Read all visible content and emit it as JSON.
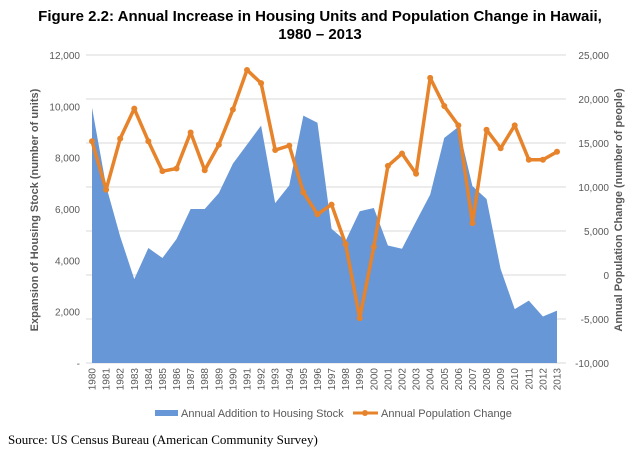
{
  "title_line1": "Figure 2.2: Annual Increase in Housing Units and Population Change in Hawaii,",
  "title_line2": "1980 – 2013",
  "source": "Source: US Census Bureau (American Community Survey)",
  "chart_data": {
    "type": "area+line",
    "categories": [
      "1980",
      "1981",
      "1982",
      "1983",
      "1984",
      "1985",
      "1986",
      "1987",
      "1988",
      "1989",
      "1990",
      "1991",
      "1992",
      "1993",
      "1994",
      "1995",
      "1996",
      "1997",
      "1998",
      "1999",
      "2000",
      "2001",
      "2002",
      "2003",
      "2004",
      "2005",
      "2006",
      "2007",
      "2008",
      "2009",
      "2010",
      "2011",
      "2012",
      "2013"
    ],
    "series": [
      {
        "name": "Annual Addition to Housing Stock",
        "type": "area",
        "axis": "left",
        "color": "#6797d6",
        "values": [
          9950,
          6900,
          4930,
          3270,
          4480,
          4090,
          4830,
          6000,
          6000,
          6620,
          7770,
          8510,
          9250,
          6230,
          6920,
          9640,
          9360,
          5230,
          4760,
          5910,
          6040,
          4580,
          4450,
          5520,
          6560,
          8770,
          9200,
          6890,
          6390,
          3660,
          2100,
          2430,
          1810,
          2040
        ]
      },
      {
        "name": "Annual Population Change",
        "type": "line",
        "axis": "right",
        "color": "#e7832a",
        "values": [
          15200,
          9700,
          15500,
          18900,
          15200,
          11800,
          12100,
          16200,
          11900,
          14800,
          18800,
          23300,
          21800,
          14200,
          14700,
          9400,
          6900,
          8000,
          3500,
          -4900,
          3200,
          12400,
          13800,
          11500,
          22400,
          19200,
          17000,
          5900,
          16500,
          14400,
          17000,
          13100,
          13100,
          14000
        ]
      }
    ],
    "ylabel": "Expansion of Housing Stock (number of units)",
    "y2label": "Annual Population Change (number of people)",
    "ylim": [
      0,
      12000
    ],
    "y2lim": [
      -10000,
      25000
    ],
    "yticks": [
      "-",
      "2,000",
      "4,000",
      "6,000",
      "8,000",
      "10,000",
      "12,000"
    ],
    "y2ticks": [
      "-10,000",
      "-5,000",
      "0",
      "5,000",
      "10,000",
      "15,000",
      "20,000",
      "25,000"
    ],
    "grid": true,
    "legend": "bottom"
  }
}
